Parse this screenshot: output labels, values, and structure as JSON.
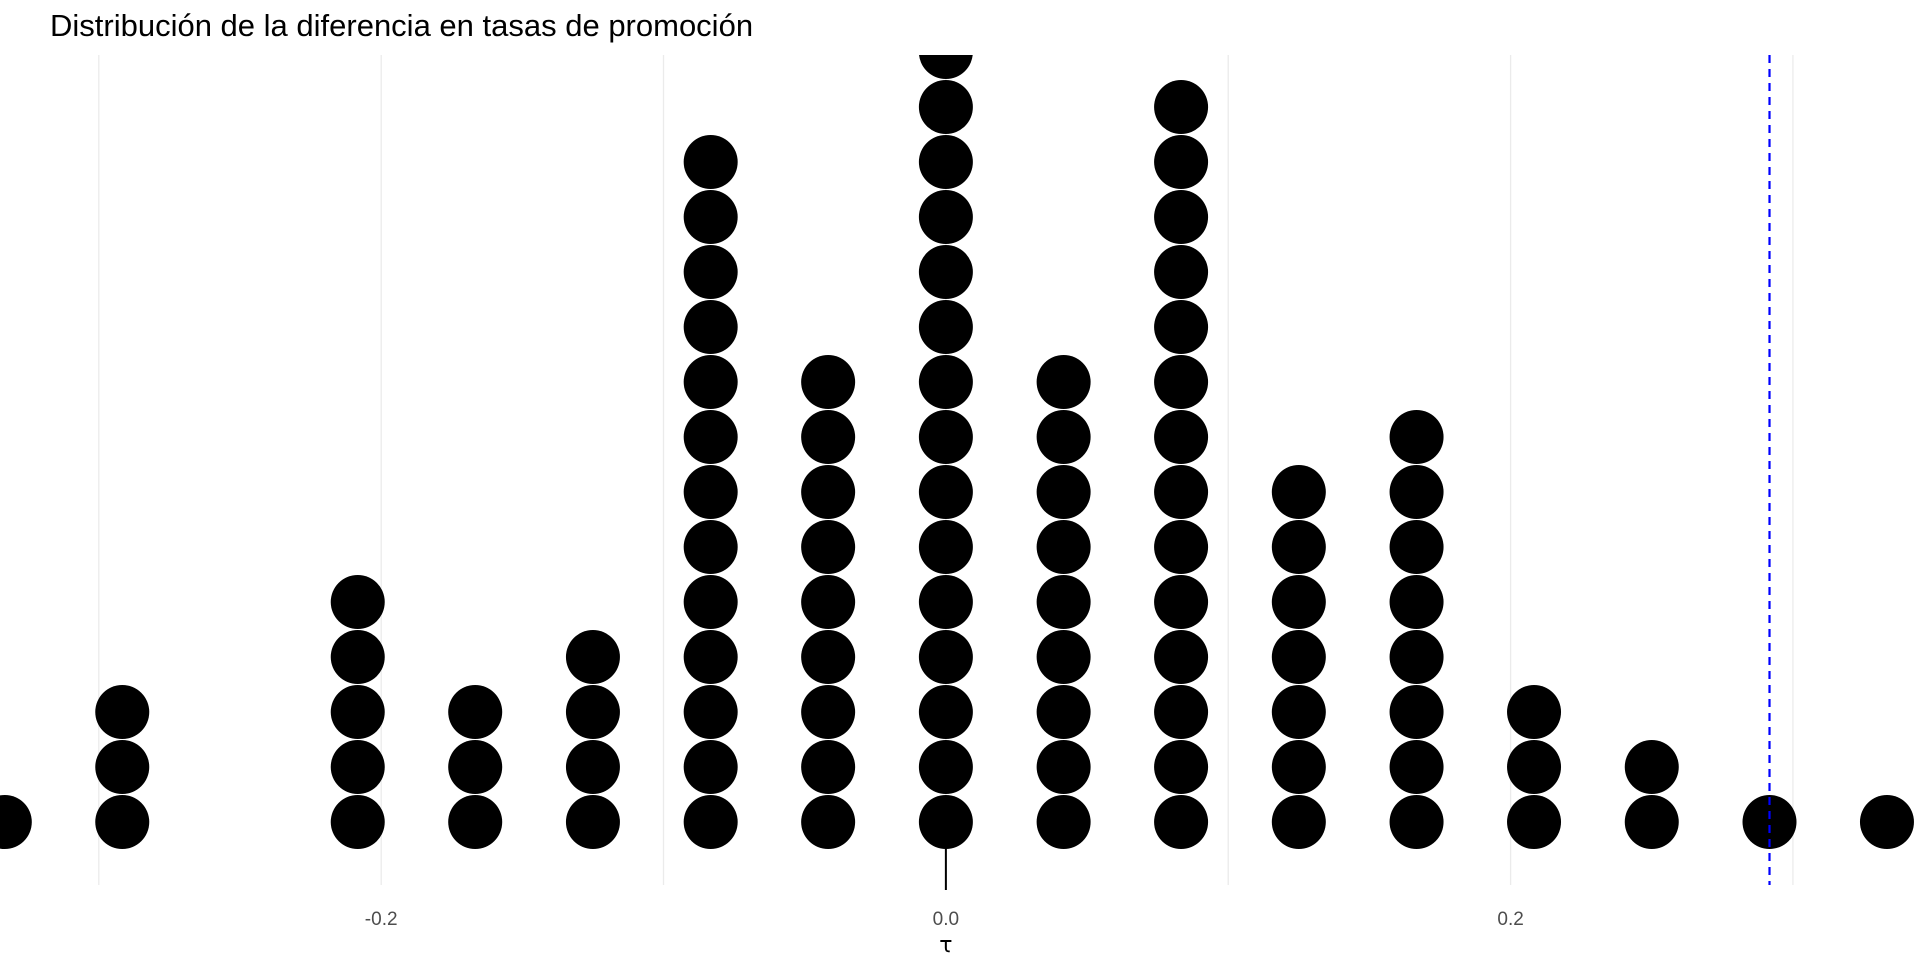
{
  "chart_data": {
    "type": "dotplot",
    "title": "Distribución de la diferencia en tasas de promoción",
    "xlabel": "τ",
    "ylabel": "",
    "xlim": [
      -0.335,
      0.345
    ],
    "x_ticks": [
      -0.2,
      0.0,
      0.2
    ],
    "x_tick_labels": [
      "-0.2",
      "0.0",
      "0.2"
    ],
    "grid": "vertical major and minor",
    "bins": [
      {
        "x": -0.3333,
        "count": 1
      },
      {
        "x": -0.2917,
        "count": 3
      },
      {
        "x": -0.2083,
        "count": 5
      },
      {
        "x": -0.1667,
        "count": 3
      },
      {
        "x": -0.125,
        "count": 4
      },
      {
        "x": -0.0833,
        "count": 13
      },
      {
        "x": -0.0417,
        "count": 9
      },
      {
        "x": 0.0,
        "count": 15
      },
      {
        "x": 0.0417,
        "count": 9
      },
      {
        "x": 0.0833,
        "count": 14
      },
      {
        "x": 0.125,
        "count": 7
      },
      {
        "x": 0.1667,
        "count": 8
      },
      {
        "x": 0.2083,
        "count": 3
      },
      {
        "x": 0.25,
        "count": 2
      },
      {
        "x": 0.2917,
        "count": 1
      },
      {
        "x": 0.3333,
        "count": 1
      }
    ],
    "reference_lines": [
      {
        "x": 0.2917,
        "style": "dashed",
        "color": "#0000ff"
      }
    ],
    "marker_segment": {
      "x": 0.0,
      "color": "#000000"
    }
  },
  "colors": {
    "dots": "#000000",
    "grid": "#ebebeb",
    "reference": "#0000ff",
    "tick_text": "#4d4d4d"
  }
}
